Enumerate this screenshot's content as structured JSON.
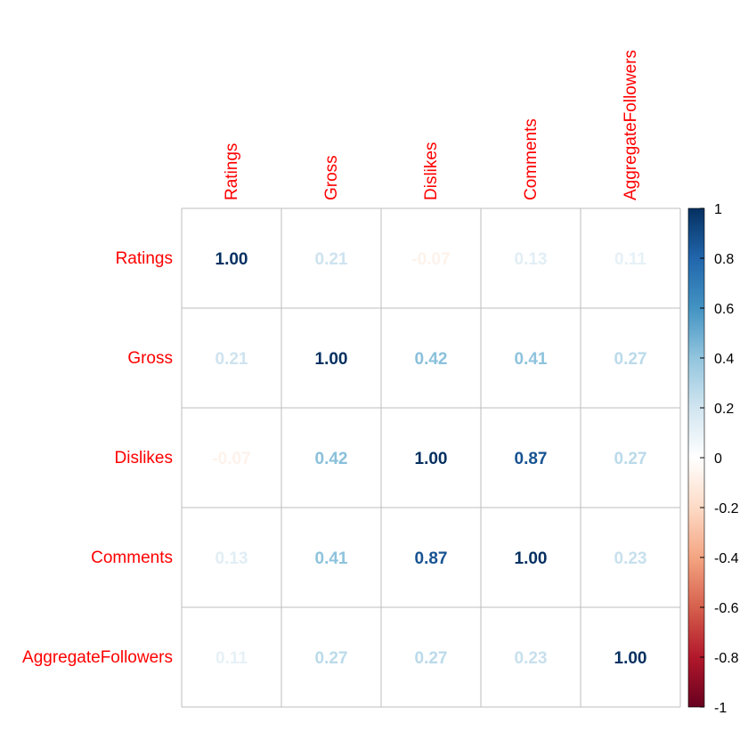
{
  "chart_data": {
    "type": "heatmap",
    "variables": [
      "Ratings",
      "Gross",
      "Dislikes",
      "Comments",
      "AggregateFollowers"
    ],
    "matrix": [
      [
        1.0,
        0.21,
        -0.07,
        0.13,
        0.11
      ],
      [
        0.21,
        1.0,
        0.42,
        0.41,
        0.27
      ],
      [
        -0.07,
        0.42,
        1.0,
        0.87,
        0.27
      ],
      [
        0.13,
        0.41,
        0.87,
        1.0,
        0.23
      ],
      [
        0.11,
        0.27,
        0.27,
        0.23,
        1.0
      ]
    ],
    "value_labels": [
      [
        "1.00",
        "0.21",
        "-0.07",
        "0.13",
        "0.11"
      ],
      [
        "0.21",
        "1.00",
        "0.42",
        "0.41",
        "0.27"
      ],
      [
        "-0.07",
        "0.42",
        "1.00",
        "0.87",
        "0.27"
      ],
      [
        "0.13",
        "0.41",
        "0.87",
        "1.00",
        "0.23"
      ],
      [
        "0.11",
        "0.27",
        "0.27",
        "0.23",
        "1.00"
      ]
    ],
    "colorbar": {
      "range": [
        -1,
        1
      ],
      "ticks": [
        "1",
        "0.8",
        "0.6",
        "0.4",
        "0.2",
        "0",
        "-0.2",
        "-0.4",
        "-0.6",
        "-0.8",
        "-1"
      ],
      "tick_values": [
        1,
        0.8,
        0.6,
        0.4,
        0.2,
        0,
        -0.2,
        -0.4,
        -0.6,
        -0.8,
        -1
      ]
    },
    "colors": {
      "label": "#ff0000",
      "grid": "#bebebe",
      "palette": [
        "#67001f",
        "#b2182b",
        "#d6604d",
        "#f4a582",
        "#fddbc7",
        "#ffffff",
        "#d1e5f0",
        "#92c5de",
        "#4393c3",
        "#2166ac",
        "#053061"
      ]
    },
    "grid": true,
    "legend": "right"
  }
}
